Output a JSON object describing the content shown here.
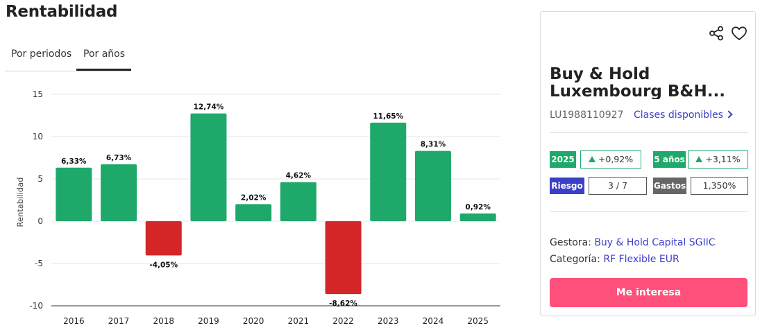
{
  "page_title": "Rentabilidad",
  "tabs": [
    {
      "label": "Por periodos",
      "active": false
    },
    {
      "label": "Por años",
      "active": true
    }
  ],
  "colors": {
    "positive": "#1ea96a",
    "negative": "#d42527",
    "cta": "#ff4f7b",
    "link": "#3b3fc7",
    "risk": "#3b3fc7",
    "expenses": "#666666"
  },
  "chart_data": {
    "type": "bar",
    "categories": [
      "2016",
      "2017",
      "2018",
      "2019",
      "2020",
      "2021",
      "2022",
      "2023",
      "2024",
      "2025"
    ],
    "values": [
      6.33,
      6.73,
      -4.05,
      12.74,
      2.02,
      4.62,
      -8.62,
      11.65,
      8.31,
      0.92
    ],
    "labels": [
      "6,33%",
      "6,73%",
      "-4,05%",
      "12,74%",
      "2,02%",
      "4,62%",
      "-8,62%",
      "11,65%",
      "8,31%",
      "0,92%"
    ],
    "title": "",
    "xlabel": "",
    "ylabel": "Rentabilidad",
    "ylim": [
      -10,
      15
    ],
    "yticks": [
      -10,
      -5,
      0,
      5,
      10,
      15
    ],
    "grid": true,
    "legend": "none"
  },
  "fund": {
    "name_line1": "Buy & Hold",
    "name_line2": "Luxembourg B&H...",
    "isin": "LU1988110927",
    "classes_link": "Clases disponibles",
    "year_badge": "2025",
    "year_return": "+0,92%",
    "five_years_badge": "5 años",
    "five_years_return": "+3,11%",
    "risk_badge": "Riesgo",
    "risk_value": "3 / 7",
    "expenses_badge": "Gastos",
    "expenses_value": "1,350%",
    "manager_label": "Gestora:",
    "manager_value": "Buy & Hold Capital SGIIC",
    "category_label": "Categoría:",
    "category_value": "RF Flexible EUR",
    "cta_label": "Me interesa",
    "share_icon": "share-icon",
    "heart_icon": "heart-icon"
  }
}
